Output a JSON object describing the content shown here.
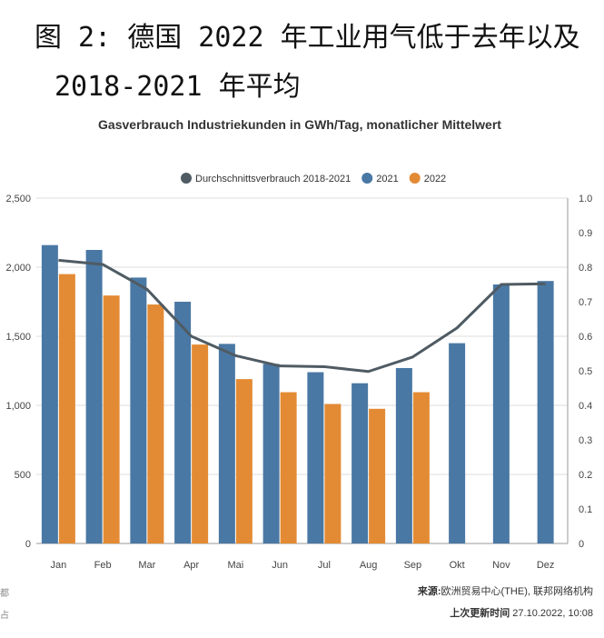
{
  "caption": {
    "line1": "图 2: 德国 2022 年工业用气低于去年以及",
    "line2": "2018-2021 年平均"
  },
  "chart_data": {
    "type": "bar",
    "title": "Gasverbrauch Industriekunden in GWh/Tag, monatlicher Mittelwert",
    "categories": [
      "Jan",
      "Feb",
      "Mar",
      "Apr",
      "Mai",
      "Jun",
      "Jul",
      "Aug",
      "Sep",
      "Okt",
      "Nov",
      "Dez"
    ],
    "series": [
      {
        "name": "2021",
        "type": "bar",
        "color": "#4a78a4",
        "values": [
          2160,
          2125,
          1925,
          1750,
          1445,
          1300,
          1240,
          1160,
          1270,
          1450,
          1875,
          1900
        ]
      },
      {
        "name": "2022",
        "type": "bar",
        "color": "#e38b34",
        "values": [
          1950,
          1795,
          1730,
          1440,
          1190,
          1095,
          1010,
          975,
          1095,
          null,
          null,
          null
        ]
      },
      {
        "name": "Durchschnittsverbrauch 2018-2021",
        "type": "line",
        "color": "#4f5b63",
        "values": [
          2050,
          2020,
          1840,
          1500,
          1360,
          1285,
          1280,
          1245,
          1350,
          1560,
          1875,
          1880
        ]
      }
    ],
    "legend_order": [
      "Durchschnittsverbrauch 2018-2021",
      "2021",
      "2022"
    ],
    "ylim": [
      0,
      2500
    ],
    "yticks": [
      "0",
      "500",
      "1,000",
      "1,500",
      "2,000",
      "2,500"
    ],
    "y2lim": [
      0,
      1.0
    ],
    "y2ticks": [
      "0",
      "0.1",
      "0.2",
      "0.3",
      "0.4",
      "0.5",
      "0.6",
      "0.7",
      "0.8",
      "0.9",
      "1.0"
    ],
    "grid": true,
    "legend_position": "top-center"
  },
  "footer": {
    "source_label": "来源:",
    "source_text": "欧洲贸易中心(THE), 联邦网络机构",
    "updated_label": "上次更新时间",
    "updated_text": "27.10.2022, 10:08"
  },
  "colors": {
    "bar_2021": "#4a78a4",
    "bar_2022": "#e38b34",
    "avg_line": "#4f5b63",
    "grid": "#dddddd"
  },
  "edge_marks": [
    "都",
    "占"
  ]
}
